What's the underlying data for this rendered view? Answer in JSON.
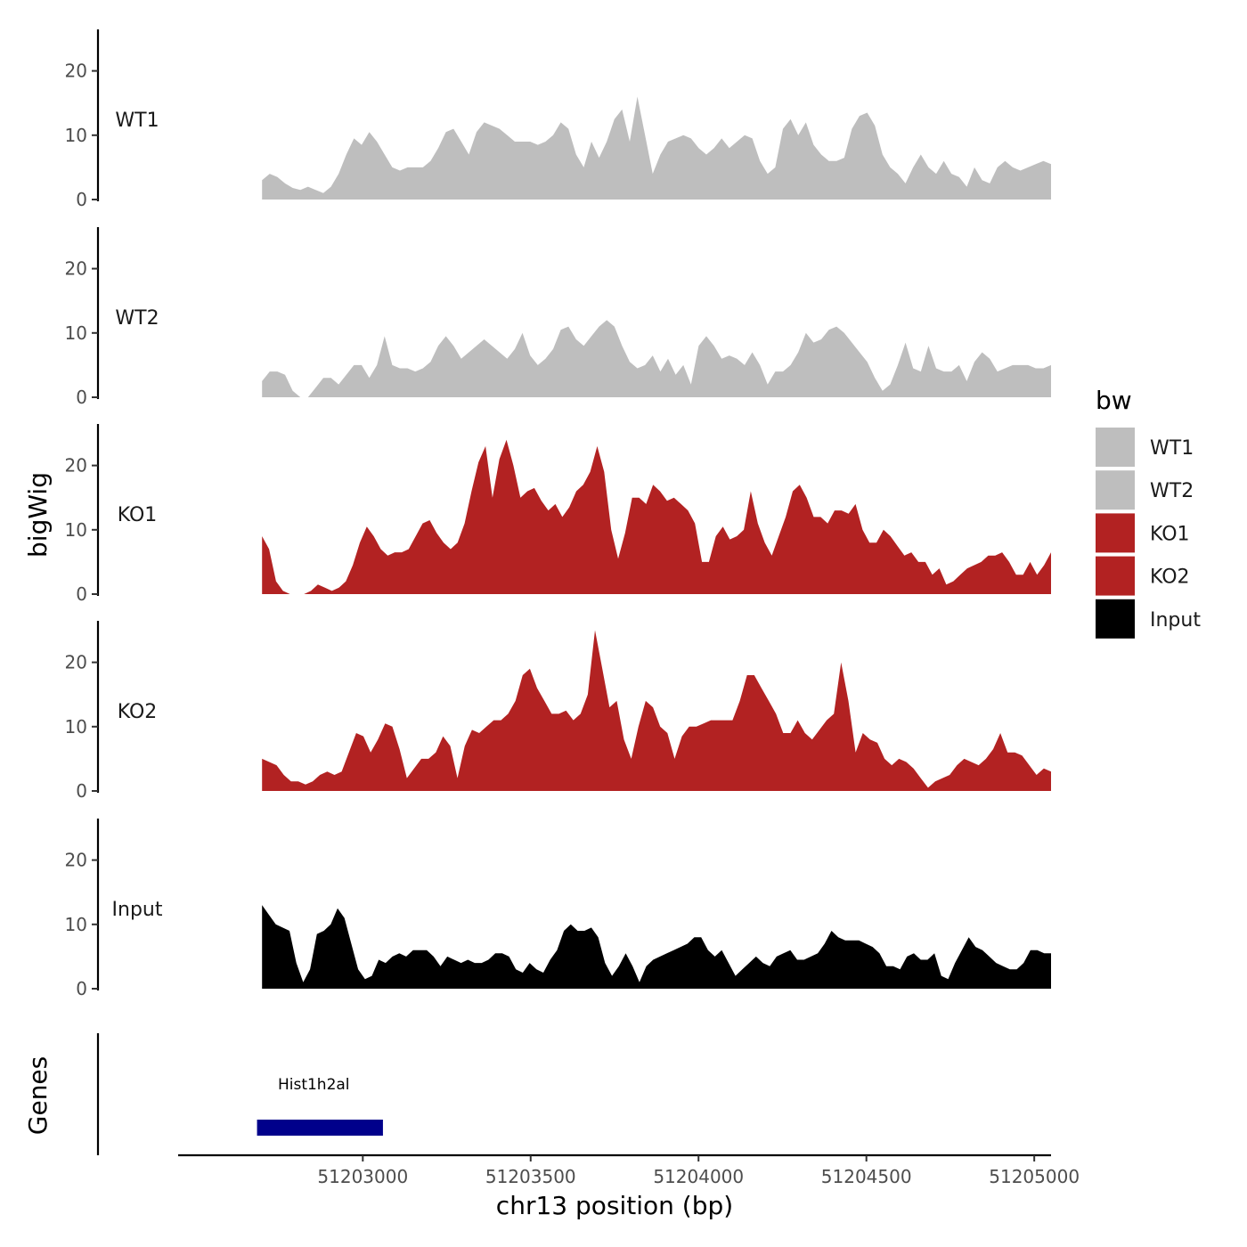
{
  "chart_data": {
    "type": "area",
    "chromosome": "chr13",
    "xlabel": "chr13 position (bp)",
    "ylabel": "bigWig",
    "xlim": [
      51202450,
      51205050
    ],
    "x_start": 51202700,
    "x_end": 51205050,
    "x_ticks": [
      51203000,
      51203500,
      51204000,
      51204500,
      51205000
    ],
    "x_tick_labels": [
      "51203000",
      "51203500",
      "51204000",
      "51204500",
      "51205000"
    ],
    "ylim": [
      0,
      27
    ],
    "y_ticks": [
      0,
      10,
      20
    ],
    "y_tick_labels": [
      "0",
      "10",
      "20"
    ],
    "legend": {
      "title": "bw",
      "items": [
        {
          "label": "WT1",
          "color": "#bebebe"
        },
        {
          "label": "WT2",
          "color": "#bebebe"
        },
        {
          "label": "KO1",
          "color": "#b22222"
        },
        {
          "label": "KO2",
          "color": "#b22222"
        },
        {
          "label": "Input",
          "color": "#000000"
        }
      ]
    },
    "series": [
      {
        "name": "WT1",
        "color": "#bebebe",
        "values": [
          3,
          4,
          3.5,
          2.5,
          1.8,
          1.5,
          2,
          1.5,
          1,
          2,
          4,
          7,
          9.5,
          8.5,
          10.5,
          9,
          7,
          5,
          4.5,
          5,
          5,
          5,
          6,
          8,
          10.5,
          11,
          9,
          7,
          10.5,
          12,
          11.5,
          11,
          10,
          9,
          9,
          9,
          8.5,
          9,
          10,
          12,
          11,
          7,
          5,
          9,
          6.5,
          9,
          12.5,
          14,
          9,
          16,
          10,
          4,
          7,
          9,
          9.5,
          10,
          9.5,
          8,
          7,
          8,
          9.5,
          8,
          9,
          10,
          9.5,
          6,
          4,
          5,
          11,
          12.5,
          10,
          12,
          8.5,
          7,
          6,
          6,
          6.5,
          11,
          13,
          13.5,
          11.5,
          7,
          5,
          4,
          2.5,
          5,
          7,
          5,
          4,
          6,
          4,
          3.5,
          2,
          5,
          3,
          2.5,
          5,
          6,
          5,
          4.5,
          5,
          5.5,
          6,
          5.5
        ]
      },
      {
        "name": "WT2",
        "color": "#bebebe",
        "values": [
          2.5,
          4,
          4,
          3.5,
          1,
          0,
          0,
          1.5,
          3,
          3,
          2,
          3.5,
          5,
          5,
          3,
          5,
          9.5,
          5,
          4.5,
          4.5,
          4,
          4.5,
          5.5,
          8,
          9.5,
          8,
          6,
          7,
          8,
          9,
          8,
          7,
          6,
          7.5,
          10,
          6.5,
          5,
          6,
          7.5,
          10.5,
          11,
          9,
          8,
          9.5,
          11,
          12,
          11,
          8,
          5.5,
          4.5,
          5,
          6.5,
          4,
          6,
          3.5,
          5,
          2,
          8,
          9.5,
          8,
          6,
          6.5,
          6,
          5,
          7,
          5,
          2,
          4,
          4,
          5,
          7,
          10,
          8.5,
          9,
          10.5,
          11,
          10,
          8.5,
          7,
          5.5,
          3,
          1,
          2,
          5,
          8.5,
          4.5,
          4,
          8,
          4.5,
          4,
          4,
          5,
          2.5,
          5.5,
          7,
          6,
          4,
          4.5,
          5,
          5,
          5,
          4.5,
          4.5,
          5
        ]
      },
      {
        "name": "KO1",
        "color": "#b22222",
        "values": [
          9,
          7,
          2,
          0.5,
          0,
          0,
          0,
          0.5,
          1.5,
          1,
          0.5,
          1,
          2,
          4.5,
          8,
          10.5,
          9,
          7,
          6,
          6.5,
          6.5,
          7,
          9,
          11,
          11.5,
          9.5,
          8,
          7,
          8,
          11,
          16,
          20.5,
          23,
          15,
          21,
          24,
          20,
          15,
          16,
          16.5,
          14.5,
          13,
          14,
          12,
          13.5,
          16,
          17,
          19,
          23,
          19,
          10,
          5.5,
          9.5,
          15,
          15,
          14,
          17,
          16,
          14.5,
          15,
          14,
          13,
          11,
          5,
          5,
          9,
          10.5,
          8.5,
          9,
          10,
          16,
          11,
          8,
          6,
          9,
          12,
          16,
          17,
          15,
          12,
          12,
          11,
          13,
          13,
          12.5,
          14,
          10,
          8,
          8,
          10,
          9,
          7.5,
          6,
          6.5,
          5,
          5,
          3,
          4,
          1.5,
          2,
          3,
          4,
          4.5,
          5,
          6,
          6,
          6.5,
          5,
          3,
          3,
          5,
          3,
          4.5,
          6.5
        ]
      },
      {
        "name": "KO2",
        "color": "#b22222",
        "values": [
          5,
          4.5,
          4,
          2.5,
          1.5,
          1.5,
          1,
          1.5,
          2.5,
          3,
          2.5,
          3,
          6,
          9,
          8.5,
          6,
          8,
          10.5,
          10,
          6.5,
          2,
          3.5,
          5,
          5,
          6,
          8.5,
          7,
          2,
          7,
          9.5,
          9,
          10,
          11,
          11,
          12,
          14,
          18,
          19,
          16,
          14,
          12,
          12,
          12.5,
          11,
          12,
          15,
          25,
          19,
          13,
          14,
          8,
          5,
          10,
          14,
          13,
          10,
          9,
          5,
          8.5,
          10,
          10,
          10.5,
          11,
          11,
          11,
          11,
          14,
          18,
          18,
          16,
          14,
          12,
          9,
          9,
          11,
          9,
          8,
          9.5,
          11,
          12,
          20,
          14,
          6,
          9,
          8,
          7.5,
          5,
          4,
          5,
          4.5,
          3.5,
          2,
          0.5,
          1.5,
          2,
          2.5,
          4,
          5,
          4.5,
          4,
          5,
          6.5,
          9,
          6,
          6,
          5.5,
          4,
          2.5,
          3.5,
          3
        ]
      },
      {
        "name": "Input",
        "color": "#000000",
        "values": [
          13,
          11.5,
          10,
          9.5,
          9,
          4,
          1,
          3,
          8.5,
          9,
          10,
          12.5,
          11,
          7,
          3,
          1.5,
          2,
          4.5,
          4,
          5,
          5.5,
          5,
          6,
          6,
          6,
          5,
          3.5,
          5,
          4.5,
          4,
          4.5,
          4,
          4,
          4.5,
          5.5,
          5.5,
          5,
          3,
          2.5,
          4,
          3,
          2.5,
          4.5,
          6,
          9,
          10,
          9,
          9,
          9.5,
          8,
          4,
          2,
          3.5,
          5.5,
          3.5,
          1,
          3.5,
          4.5,
          5,
          5.5,
          6,
          6.5,
          7,
          8,
          8,
          6,
          5,
          6,
          4,
          2,
          3,
          4,
          5,
          4,
          3.5,
          5,
          5.5,
          6,
          4.5,
          4.5,
          5,
          5.5,
          7,
          9,
          8,
          7.5,
          7.5,
          7.5,
          7,
          6.5,
          5.5,
          3.5,
          3.5,
          3,
          5,
          5.5,
          4.5,
          4.5,
          5.5,
          2,
          1.5,
          4,
          6,
          8,
          6.5,
          6,
          5,
          4,
          3.5,
          3,
          3,
          4,
          6,
          6,
          5.5,
          5.5
        ]
      }
    ],
    "genes": [
      {
        "name": "Hist1h2al",
        "start": 51202685,
        "end": 51203060,
        "color": "#00008b"
      }
    ],
    "panel_labels": [
      "WT1",
      "WT2",
      "KO1",
      "KO2",
      "Input"
    ],
    "gene_track_title": "Genes"
  }
}
